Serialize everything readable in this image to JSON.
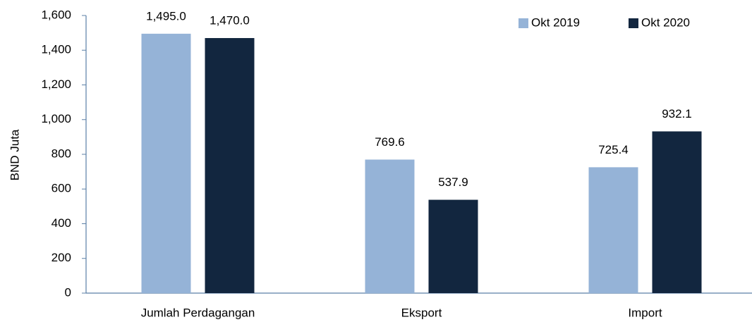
{
  "chart_data": {
    "type": "bar",
    "y_label": "BND Juta",
    "categories": [
      "Jumlah Perdagangan",
      "Eksport",
      "Import"
    ],
    "series": [
      {
        "name": "Okt 2019",
        "color": "#95b3d7",
        "values": [
          1495.0,
          769.6,
          725.4
        ],
        "value_labels": [
          "1,495.0",
          "769.6",
          "725.4"
        ]
      },
      {
        "name": "Okt 2020",
        "color": "#12263f",
        "values": [
          1470.0,
          537.9,
          932.1
        ],
        "value_labels": [
          "1,470.0",
          "537.9",
          "932.1"
        ]
      }
    ],
    "ylim": [
      0,
      1600
    ],
    "yticks": [
      0,
      200,
      400,
      600,
      800,
      {
        "value": 1000,
        "label": "1,000"
      },
      {
        "value": 1200,
        "label": "1,200"
      },
      {
        "value": 1400,
        "label": "1,400"
      },
      {
        "value": 1600,
        "label": "1,600"
      }
    ],
    "legend": "top-right",
    "grid": false
  }
}
